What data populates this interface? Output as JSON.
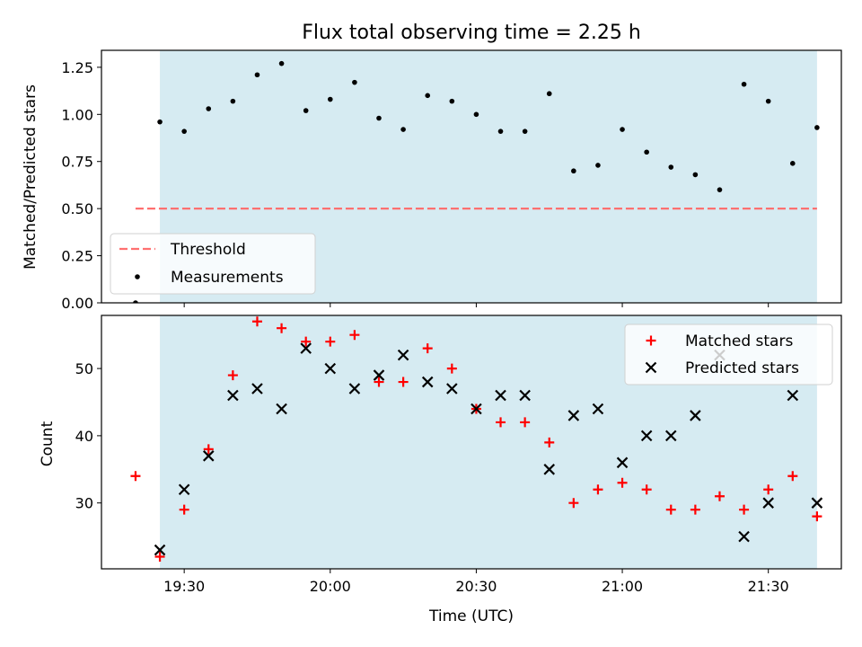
{
  "chart_data": [
    {
      "type": "scatter",
      "title": "Flux total observing time = 2.25 h",
      "xlabel": "",
      "ylabel": "Matched/Predicted stars",
      "ylim": [
        0,
        1.34
      ],
      "y_ticks": [
        "0.00",
        "0.25",
        "0.50",
        "0.75",
        "1.00",
        "1.25"
      ],
      "threshold": {
        "name": "Threshold",
        "value": 0.5,
        "color": "#ff7070"
      },
      "series": [
        {
          "name": "Measurements",
          "color": "#000000",
          "x": [
            "19:20",
            "19:25",
            "19:30",
            "19:35",
            "19:40",
            "19:45",
            "19:50",
            "19:55",
            "20:00",
            "20:05",
            "20:10",
            "20:15",
            "20:20",
            "20:25",
            "20:30",
            "20:35",
            "20:40",
            "20:45",
            "20:50",
            "20:55",
            "21:00",
            "21:05",
            "21:10",
            "21:15",
            "21:20",
            "21:25",
            "21:30",
            "21:35",
            "21:40"
          ],
          "values": [
            0.0,
            0.96,
            0.91,
            1.03,
            1.07,
            1.21,
            1.27,
            1.02,
            1.08,
            1.17,
            0.98,
            0.92,
            1.1,
            1.07,
            1.0,
            0.91,
            0.91,
            1.11,
            0.7,
            0.73,
            0.92,
            0.8,
            0.72,
            0.68,
            0.6,
            1.16,
            1.07,
            0.74,
            0.93
          ]
        }
      ],
      "legend": "lower-left"
    },
    {
      "type": "scatter",
      "xlabel": "Time (UTC)",
      "ylabel": "Count",
      "ylim": [
        20.2,
        57.9
      ],
      "y_ticks": [
        "30",
        "40",
        "50"
      ],
      "x_ticks": [
        "19:30",
        "20:00",
        "20:30",
        "21:00",
        "21:30"
      ],
      "xlim": [
        "19:13",
        "21:45"
      ],
      "series": [
        {
          "name": "Matched stars",
          "marker": "+",
          "color": "#ff0000",
          "x": [
            "19:20",
            "19:25",
            "19:30",
            "19:35",
            "19:40",
            "19:45",
            "19:50",
            "19:55",
            "20:00",
            "20:05",
            "20:10",
            "20:15",
            "20:20",
            "20:25",
            "20:30",
            "20:35",
            "20:40",
            "20:45",
            "20:50",
            "20:55",
            "21:00",
            "21:05",
            "21:10",
            "21:15",
            "21:20",
            "21:25",
            "21:30",
            "21:35",
            "21:40"
          ],
          "values": [
            34,
            22,
            29,
            38,
            49,
            57,
            56,
            54,
            54,
            55,
            48,
            48,
            53,
            50,
            44,
            42,
            42,
            39,
            30,
            32,
            33,
            32,
            29,
            29,
            31,
            29,
            32,
            34,
            28
          ]
        },
        {
          "name": "Predicted stars",
          "marker": "x",
          "color": "#000000",
          "x": [
            "19:25",
            "19:30",
            "19:35",
            "19:40",
            "19:45",
            "19:50",
            "19:55",
            "20:00",
            "20:05",
            "20:10",
            "20:15",
            "20:20",
            "20:25",
            "20:30",
            "20:35",
            "20:40",
            "20:45",
            "20:50",
            "20:55",
            "21:00",
            "21:05",
            "21:10",
            "21:15",
            "21:20",
            "21:25",
            "21:30",
            "21:35",
            "21:40"
          ],
          "values": [
            23,
            32,
            37,
            46,
            47,
            44,
            53,
            50,
            47,
            49,
            52,
            48,
            47,
            44,
            46,
            46,
            35,
            43,
            44,
            36,
            40,
            40,
            43,
            52,
            25,
            30,
            46,
            30
          ]
        }
      ],
      "legend": "top-right"
    }
  ],
  "observing_window": {
    "start": "19:25",
    "end": "21:40",
    "color": "#add8e6"
  }
}
